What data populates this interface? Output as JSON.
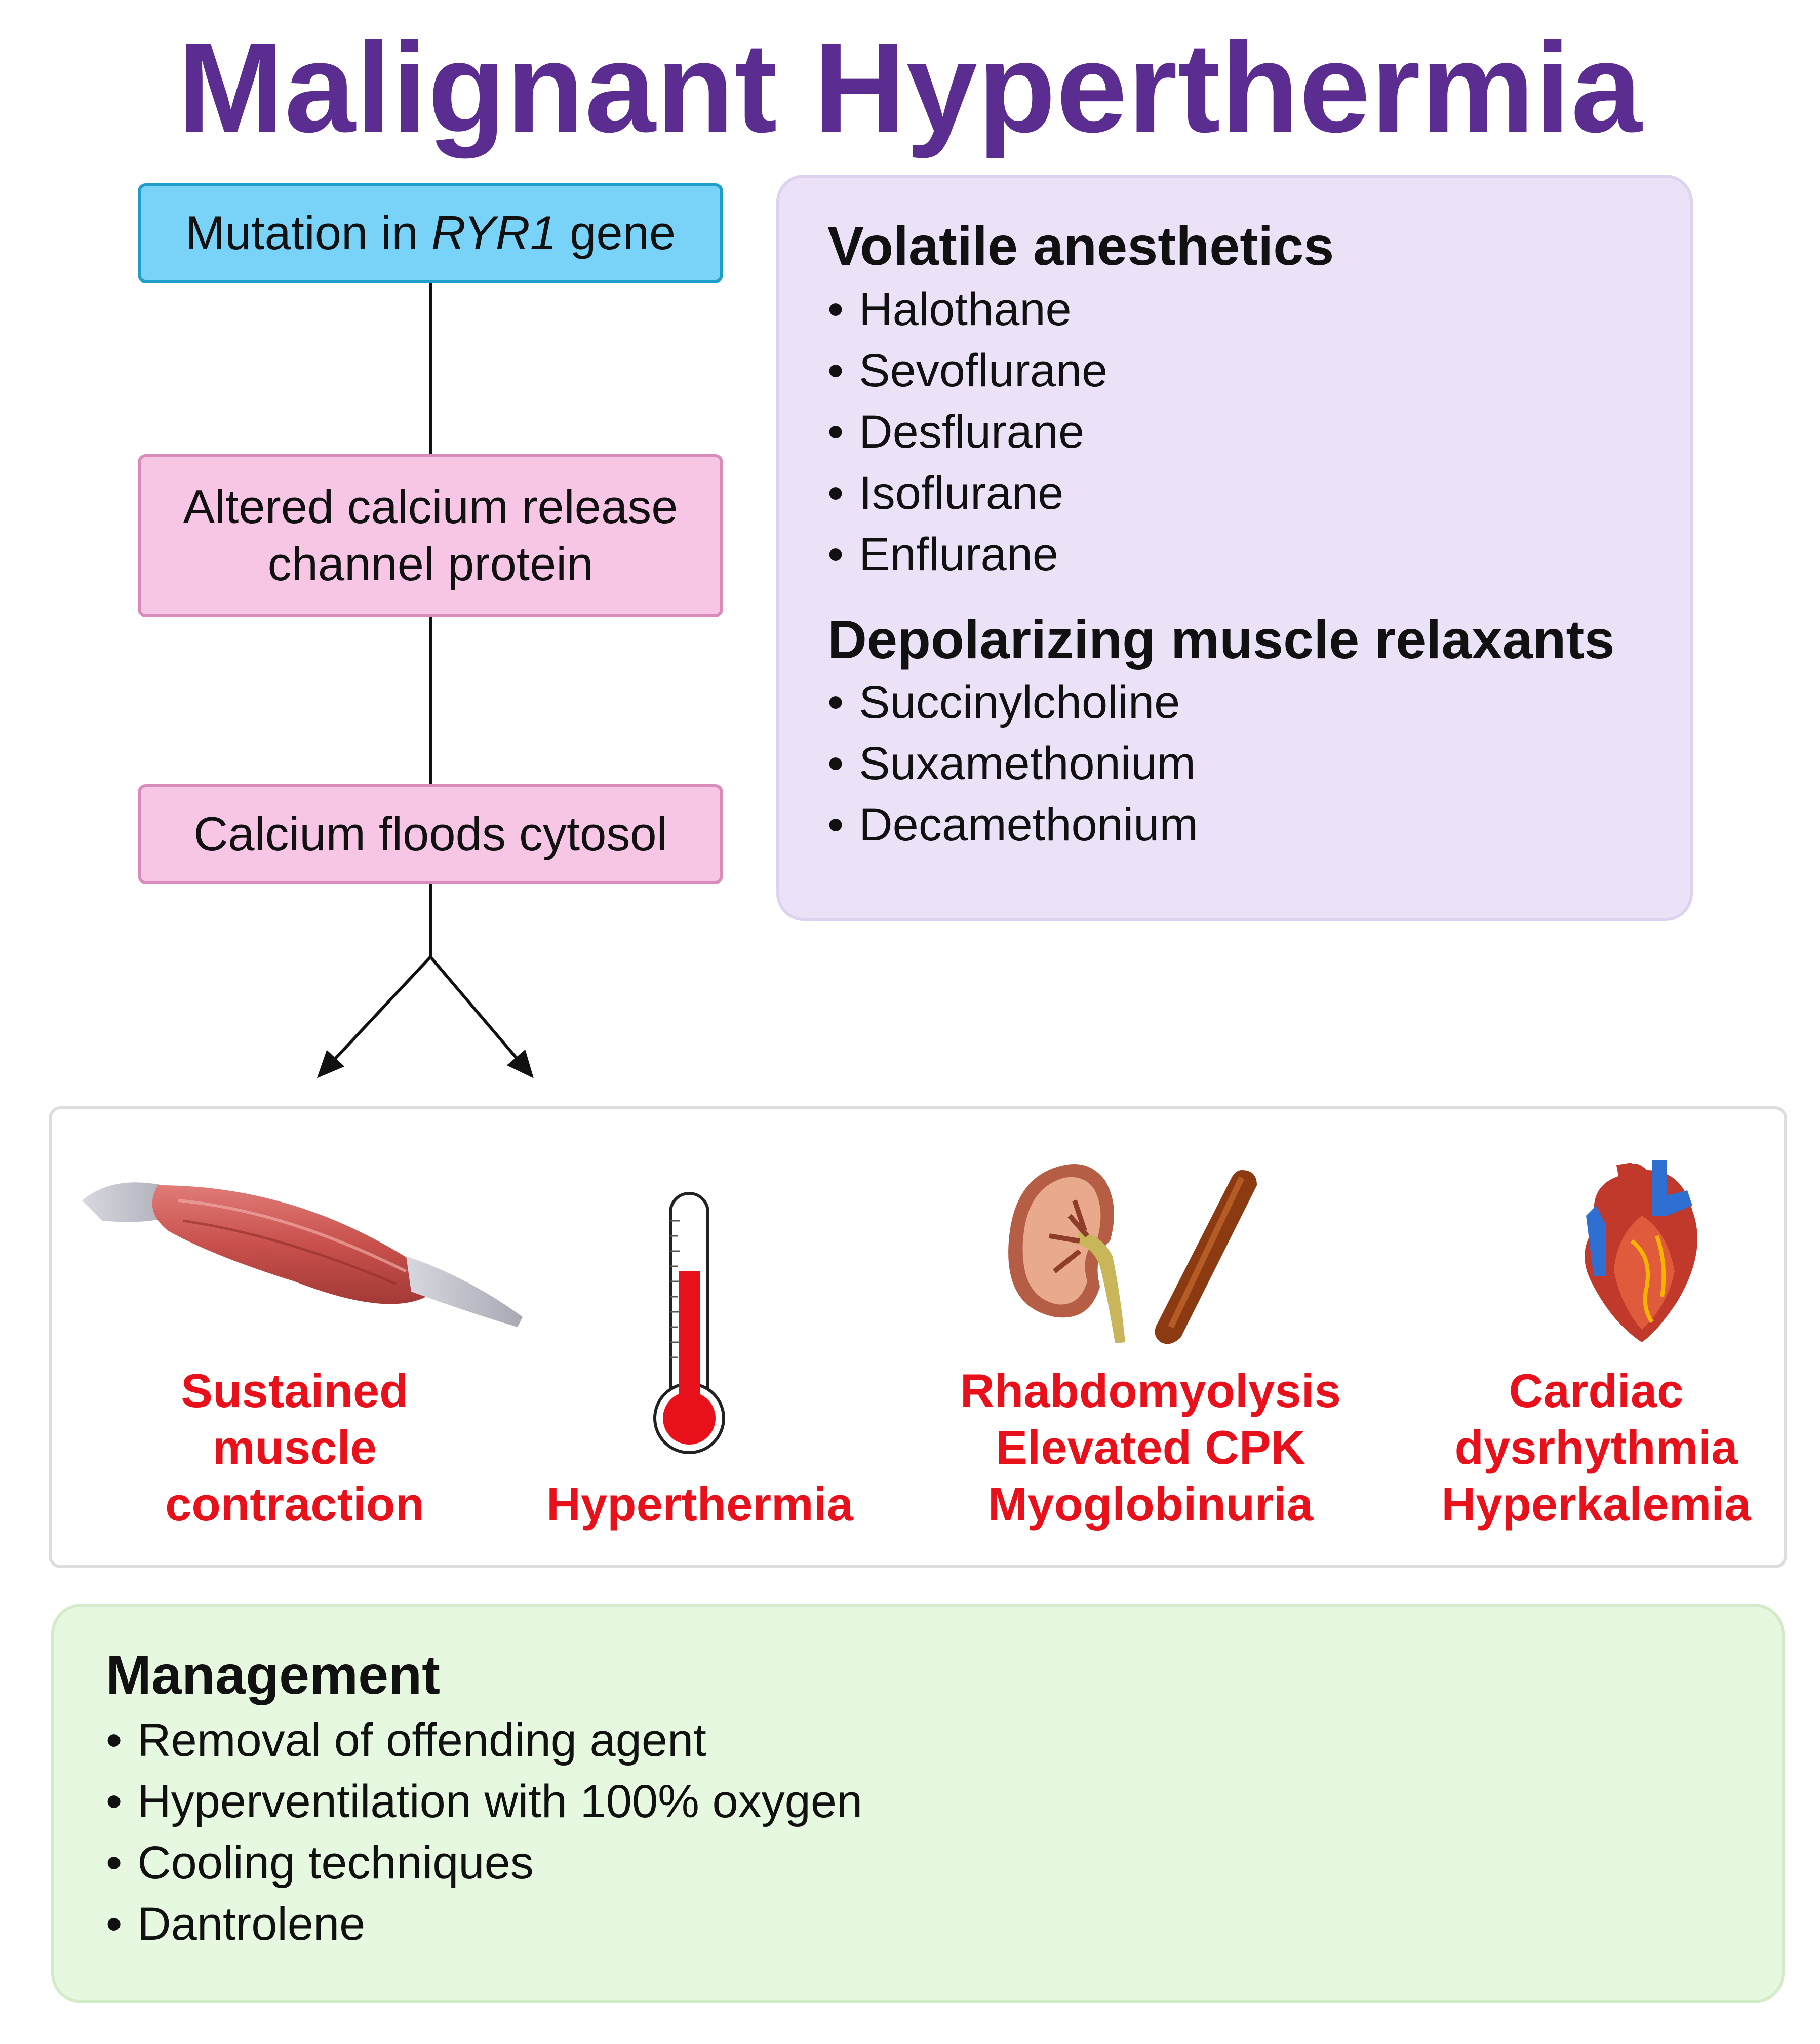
{
  "title": "Malignant Hyperthermia",
  "flow": {
    "step1": {
      "pre": "Mutation in ",
      "gene": "RYR1",
      "post": " gene"
    },
    "step2": {
      "line1": "Altered calcium release",
      "line2": "channel protein"
    },
    "step3": "Calcium floods cytosol"
  },
  "triggers": {
    "bullet": "•",
    "volatile_heading": "Volatile anesthetics",
    "volatile_items": [
      "Halothane",
      "Sevoflurane",
      "Desflurane",
      "Isoflurane",
      "Enflurane"
    ],
    "relaxants_heading": "Depolarizing muscle relaxants",
    "relaxants_items": [
      "Succinylcholine",
      "Suxamethonium",
      "Decamethonium"
    ]
  },
  "effects": [
    {
      "icon": "muscle-icon",
      "lines": [
        "Sustained",
        "muscle",
        "contraction"
      ]
    },
    {
      "icon": "thermometer-icon",
      "lines": [
        "Hyperthermia"
      ]
    },
    {
      "icon": "kidney-icon",
      "lines": [
        "Rhabdomyolysis",
        "Elevated CPK",
        "Myoglobinuria"
      ]
    },
    {
      "icon": "heart-icon",
      "lines": [
        "Cardiac",
        "dysrhythmia",
        "Hyperkalemia"
      ]
    }
  ],
  "management": {
    "heading": "Management",
    "bullet": "•",
    "items": [
      "Removal of offending agent",
      "Hyperventilation with 100% oxygen",
      "Cooling techniques",
      "Dantrolene"
    ]
  },
  "colors": {
    "title": "#5b2d91",
    "gene_box": "#79d2f8",
    "process_box": "#f6c6e4",
    "trigger_panel": "#ebe2f8",
    "effect_text": "#e8101a",
    "management_panel": "#e6f8df"
  }
}
